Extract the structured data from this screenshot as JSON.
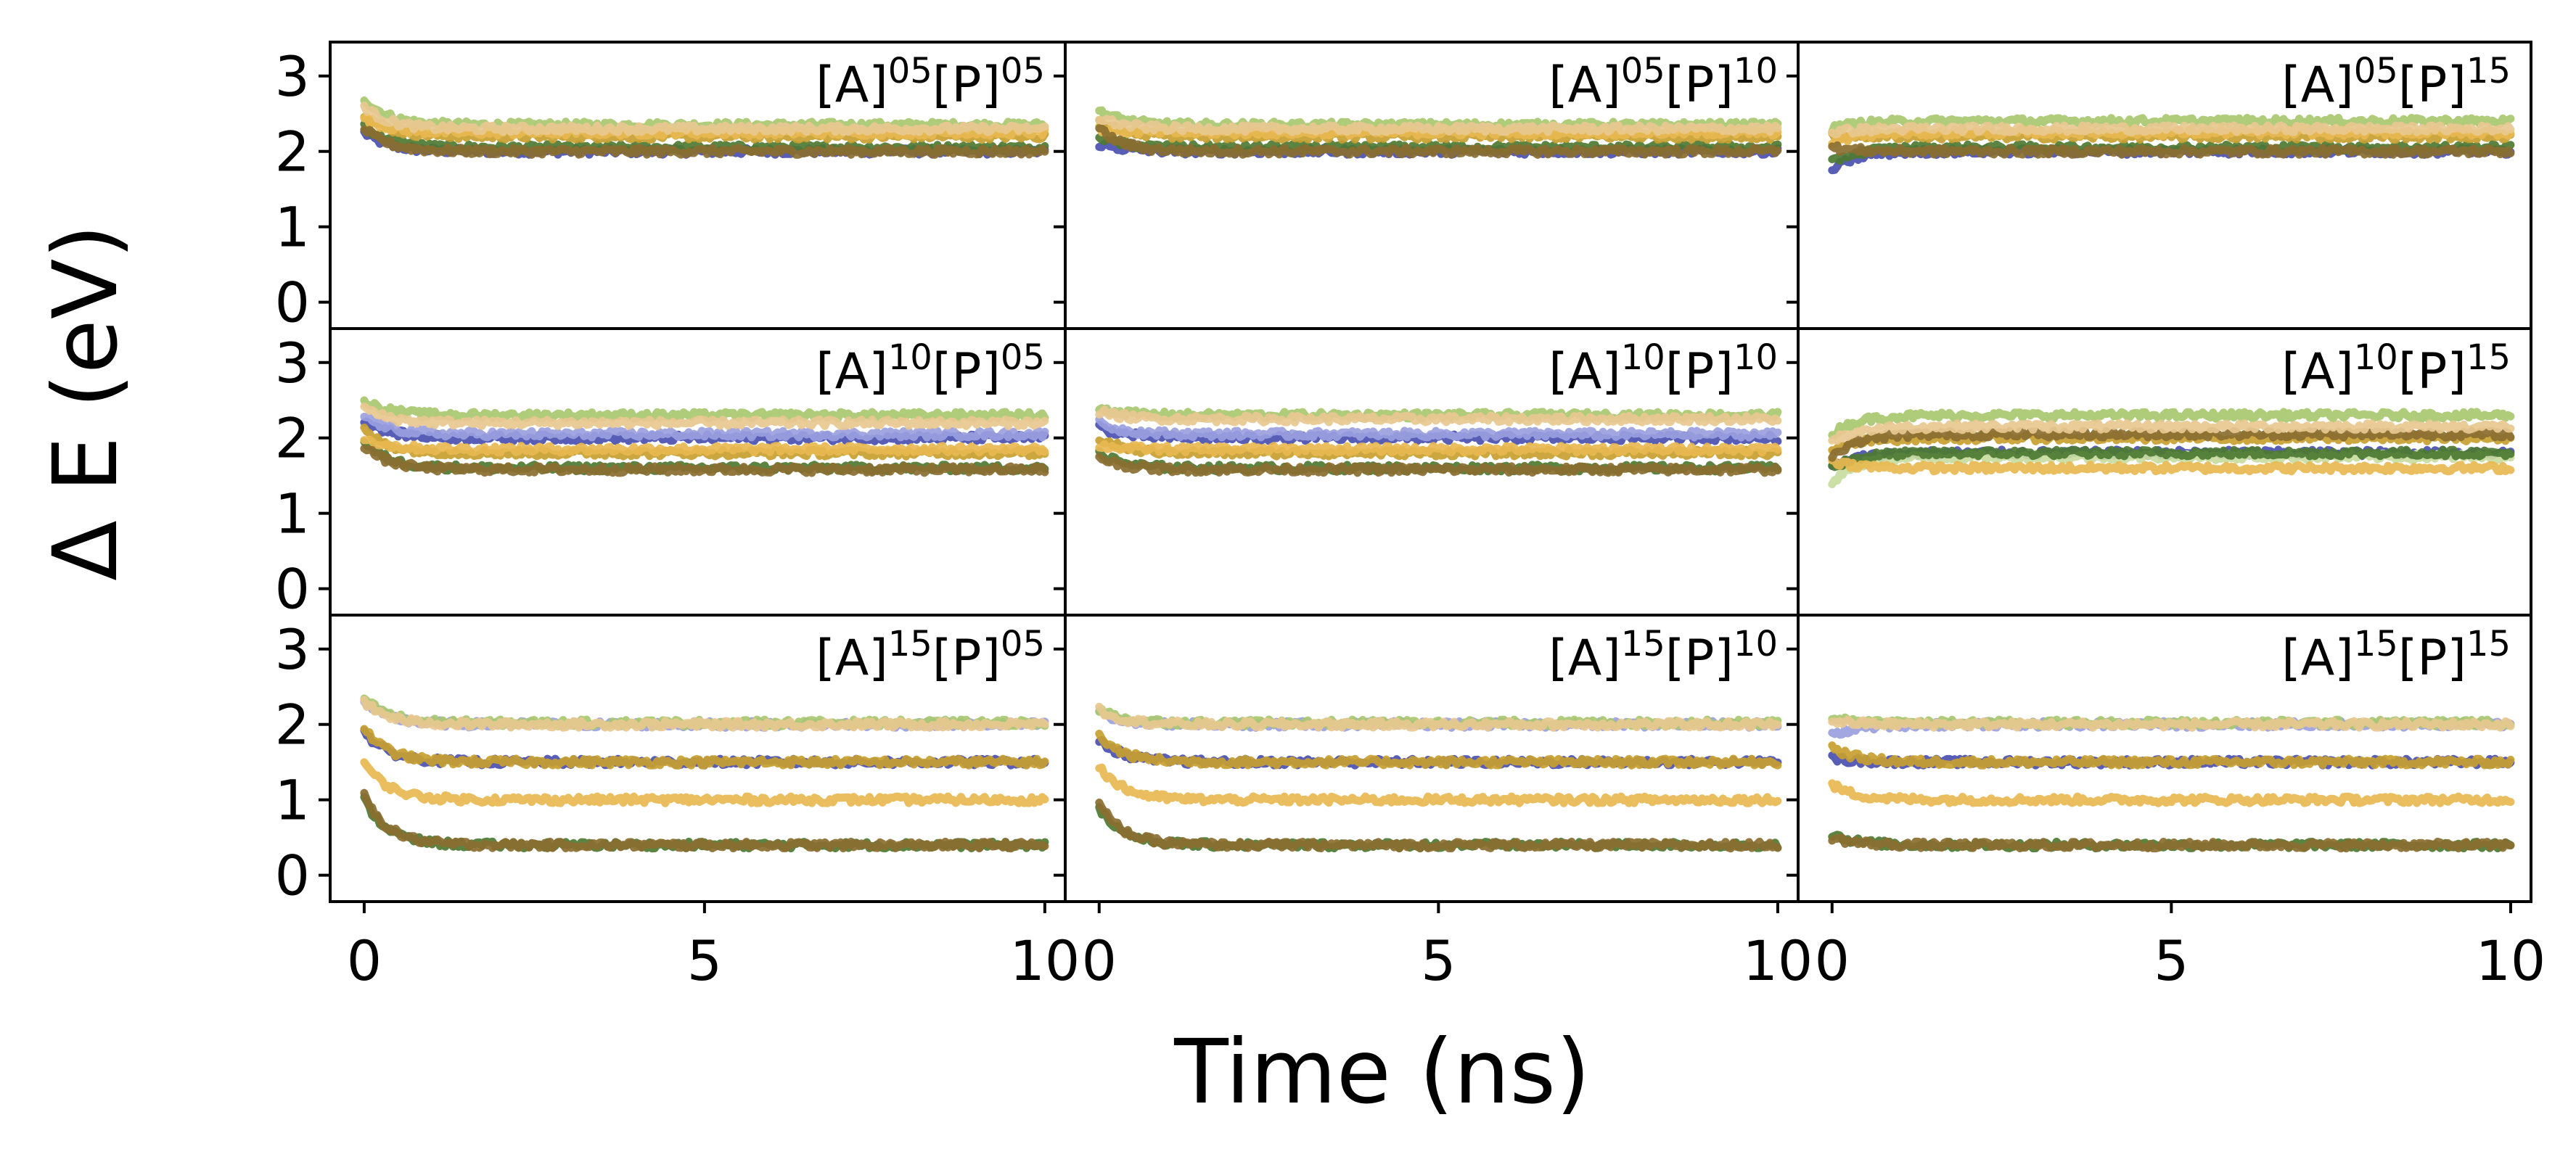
{
  "chart_data": {
    "type": "line",
    "layout": "3x3 grid of panels with shared axes",
    "xlabel": "Time (ns)",
    "ylabel": "Δ E (eV)",
    "xlim": [
      -0.5,
      10.3
    ],
    "ylim": [
      -0.35,
      3.45
    ],
    "x_ticks": [
      0,
      5,
      10
    ],
    "y_ticks": [
      0,
      1,
      2,
      3
    ],
    "x_tick_labels_shown": {
      "col0": [
        "0",
        "5",
        "10"
      ],
      "col1": [
        "0",
        "5",
        "10"
      ],
      "col2": [
        "0",
        "5",
        "10"
      ]
    },
    "y_tick_labels": [
      "0",
      "1",
      "2",
      "3"
    ],
    "legend": "none",
    "grid": false,
    "series_colors": [
      "#4a4fb0",
      "#9aa0e0",
      "#4d7a32",
      "#a8c870",
      "#c8dca0",
      "#8a6e30",
      "#c8a030",
      "#e8b850",
      "#e8c890"
    ],
    "panels": [
      {
        "label": {
          "a_base": "[A]",
          "a_sup": "05",
          "p_base": "[P]",
          "p_sup": "05"
        },
        "row": 0,
        "col": 0,
        "traces": [
          {
            "color": "#4a4fb0",
            "start": 2.25,
            "end": 2.0
          },
          {
            "color": "#a8c870",
            "start": 2.7,
            "end": 2.35
          },
          {
            "color": "#4d7a32",
            "start": 2.35,
            "end": 2.05
          },
          {
            "color": "#c8a030",
            "start": 2.5,
            "end": 2.2
          },
          {
            "color": "#e8b850",
            "start": 2.45,
            "end": 2.25
          },
          {
            "color": "#8a6e30",
            "start": 2.3,
            "end": 2.0
          },
          {
            "color": "#e8c890",
            "start": 2.6,
            "end": 2.3
          }
        ]
      },
      {
        "label": {
          "a_base": "[A]",
          "a_sup": "05",
          "p_base": "[P]",
          "p_sup": "10"
        },
        "row": 0,
        "col": 1,
        "traces": [
          {
            "color": "#4a4fb0",
            "start": 2.1,
            "end": 2.0
          },
          {
            "color": "#a8c870",
            "start": 2.55,
            "end": 2.35
          },
          {
            "color": "#4d7a32",
            "start": 2.2,
            "end": 2.05
          },
          {
            "color": "#c8a030",
            "start": 2.4,
            "end": 2.2
          },
          {
            "color": "#e8b850",
            "start": 2.3,
            "end": 2.25
          },
          {
            "color": "#8a6e30",
            "start": 2.3,
            "end": 2.0
          },
          {
            "color": "#e8c890",
            "start": 2.45,
            "end": 2.3
          }
        ]
      },
      {
        "label": {
          "a_base": "[A]",
          "a_sup": "05",
          "p_base": "[P]",
          "p_sup": "15"
        },
        "row": 0,
        "col": 2,
        "traces": [
          {
            "color": "#4a4fb0",
            "start": 1.75,
            "end": 2.0
          },
          {
            "color": "#a8c870",
            "start": 2.3,
            "end": 2.4
          },
          {
            "color": "#4d7a32",
            "start": 1.85,
            "end": 2.05
          },
          {
            "color": "#c8a030",
            "start": 2.2,
            "end": 2.2
          },
          {
            "color": "#e8b850",
            "start": 2.1,
            "end": 2.25
          },
          {
            "color": "#8a6e30",
            "start": 2.05,
            "end": 2.0
          },
          {
            "color": "#e8c890",
            "start": 2.25,
            "end": 2.3
          }
        ]
      },
      {
        "label": {
          "a_base": "[A]",
          "a_sup": "10",
          "p_base": "[P]",
          "p_sup": "05"
        },
        "row": 1,
        "col": 0,
        "traces": [
          {
            "color": "#4a4fb0",
            "start": 2.25,
            "end": 2.0
          },
          {
            "color": "#9aa0e0",
            "start": 2.3,
            "end": 2.05
          },
          {
            "color": "#a8c870",
            "start": 2.5,
            "end": 2.3
          },
          {
            "color": "#4d7a32",
            "start": 1.95,
            "end": 1.6
          },
          {
            "color": "#c8a030",
            "start": 2.1,
            "end": 1.8
          },
          {
            "color": "#e8b850",
            "start": 2.0,
            "end": 1.85
          },
          {
            "color": "#8a6e30",
            "start": 1.9,
            "end": 1.58
          },
          {
            "color": "#e8c890",
            "start": 2.4,
            "end": 2.2
          }
        ]
      },
      {
        "label": {
          "a_base": "[A]",
          "a_sup": "10",
          "p_base": "[P]",
          "p_sup": "10"
        },
        "row": 1,
        "col": 1,
        "traces": [
          {
            "color": "#4a4fb0",
            "start": 2.15,
            "end": 2.0
          },
          {
            "color": "#9aa0e0",
            "start": 2.2,
            "end": 2.05
          },
          {
            "color": "#a8c870",
            "start": 2.4,
            "end": 2.3
          },
          {
            "color": "#4d7a32",
            "start": 1.8,
            "end": 1.6
          },
          {
            "color": "#c8a030",
            "start": 2.0,
            "end": 1.8
          },
          {
            "color": "#e8b850",
            "start": 1.9,
            "end": 1.85
          },
          {
            "color": "#8a6e30",
            "start": 1.75,
            "end": 1.58
          },
          {
            "color": "#e8c890",
            "start": 2.35,
            "end": 2.25
          }
        ]
      },
      {
        "label": {
          "a_base": "[A]",
          "a_sup": "10",
          "p_base": "[P]",
          "p_sup": "15"
        },
        "row": 1,
        "col": 2,
        "traces": [
          {
            "color": "#4a4fb0",
            "start": 1.6,
            "end": 1.8
          },
          {
            "color": "#c8dca0",
            "start": 1.4,
            "end": 1.75
          },
          {
            "color": "#a8c870",
            "start": 2.05,
            "end": 2.3
          },
          {
            "color": "#4d7a32",
            "start": 1.6,
            "end": 1.8
          },
          {
            "color": "#c8a030",
            "start": 1.8,
            "end": 2.0
          },
          {
            "color": "#e8b850",
            "start": 1.7,
            "end": 1.6
          },
          {
            "color": "#8a6e30",
            "start": 1.75,
            "end": 2.05
          },
          {
            "color": "#e8c890",
            "start": 1.95,
            "end": 2.15
          }
        ]
      },
      {
        "label": {
          "a_base": "[A]",
          "a_sup": "15",
          "p_base": "[P]",
          "p_sup": "05"
        },
        "row": 2,
        "col": 0,
        "traces": [
          {
            "color": "#9aa0e0",
            "start": 2.3,
            "end": 2.0
          },
          {
            "color": "#a8c870",
            "start": 2.35,
            "end": 2.02
          },
          {
            "color": "#4a4fb0",
            "start": 1.9,
            "end": 1.5
          },
          {
            "color": "#c8a030",
            "start": 1.95,
            "end": 1.5
          },
          {
            "color": "#e8b850",
            "start": 1.5,
            "end": 1.0
          },
          {
            "color": "#4d7a32",
            "start": 1.0,
            "end": 0.4
          },
          {
            "color": "#8a6e30",
            "start": 1.05,
            "end": 0.4
          },
          {
            "color": "#e8c890",
            "start": 2.3,
            "end": 2.0
          }
        ]
      },
      {
        "label": {
          "a_base": "[A]",
          "a_sup": "15",
          "p_base": "[P]",
          "p_sup": "10"
        },
        "row": 2,
        "col": 1,
        "traces": [
          {
            "color": "#9aa0e0",
            "start": 2.15,
            "end": 2.0
          },
          {
            "color": "#a8c870",
            "start": 2.2,
            "end": 2.02
          },
          {
            "color": "#4a4fb0",
            "start": 1.8,
            "end": 1.5
          },
          {
            "color": "#c8a030",
            "start": 1.85,
            "end": 1.5
          },
          {
            "color": "#e8b850",
            "start": 1.45,
            "end": 1.0
          },
          {
            "color": "#4d7a32",
            "start": 0.9,
            "end": 0.4
          },
          {
            "color": "#8a6e30",
            "start": 0.95,
            "end": 0.4
          },
          {
            "color": "#e8c890",
            "start": 2.2,
            "end": 2.0
          }
        ]
      },
      {
        "label": {
          "a_base": "[A]",
          "a_sup": "15",
          "p_base": "[P]",
          "p_sup": "15"
        },
        "row": 2,
        "col": 2,
        "traces": [
          {
            "color": "#9aa0e0",
            "start": 1.85,
            "end": 2.0
          },
          {
            "color": "#a8c870",
            "start": 2.1,
            "end": 2.02
          },
          {
            "color": "#4a4fb0",
            "start": 1.55,
            "end": 1.5
          },
          {
            "color": "#c8a030",
            "start": 1.7,
            "end": 1.5
          },
          {
            "color": "#e8b850",
            "start": 1.2,
            "end": 1.0
          },
          {
            "color": "#4d7a32",
            "start": 0.55,
            "end": 0.4
          },
          {
            "color": "#8a6e30",
            "start": 0.5,
            "end": 0.4
          },
          {
            "color": "#e8c890",
            "start": 2.05,
            "end": 2.0
          }
        ]
      }
    ]
  }
}
